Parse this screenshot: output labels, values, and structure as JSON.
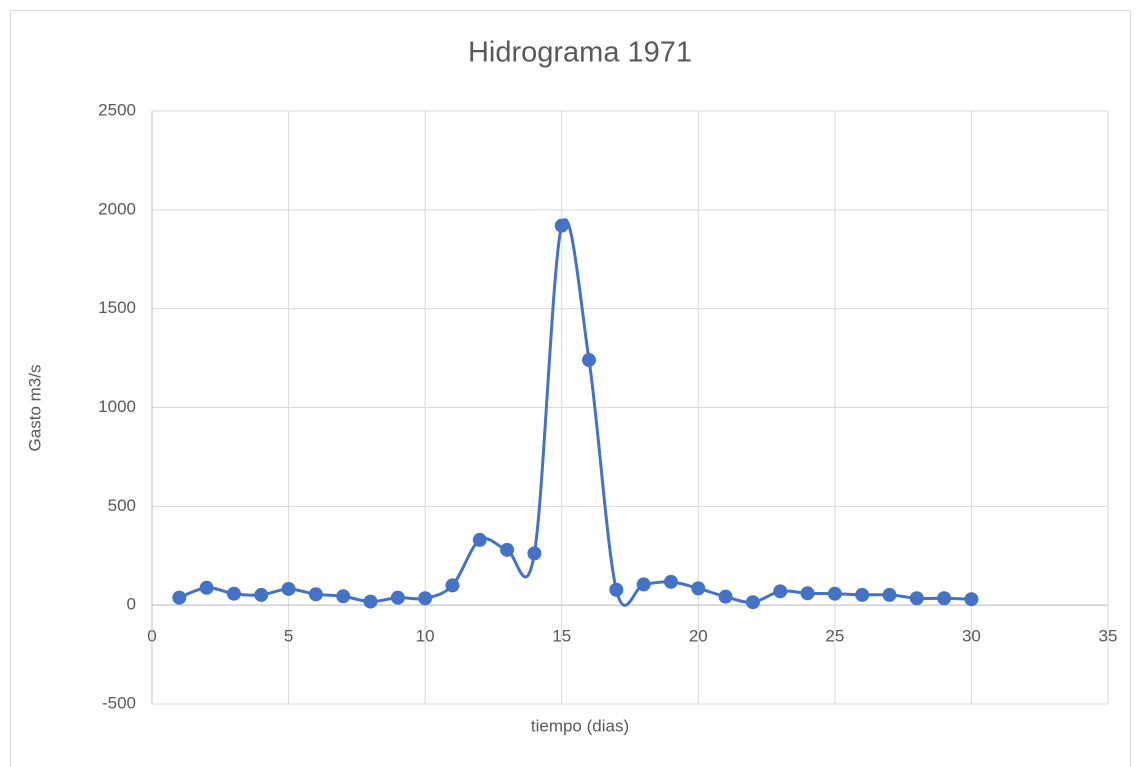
{
  "chart_data": {
    "type": "scatter",
    "title": "Hidrograma 1971",
    "x_label": "tiempo (dias)",
    "y_label": "Gasto m3/s",
    "x": [
      1,
      2,
      3,
      4,
      5,
      6,
      7,
      8,
      9,
      10,
      11,
      12,
      13,
      14,
      15,
      16,
      17,
      18,
      19,
      20,
      21,
      22,
      23,
      24,
      25,
      26,
      27,
      28,
      29,
      30
    ],
    "values": [
      38,
      88,
      58,
      52,
      82,
      55,
      45,
      18,
      38,
      35,
      100,
      330,
      280,
      262,
      1920,
      1240,
      78,
      105,
      118,
      85,
      43,
      15,
      70,
      60,
      58,
      52,
      52,
      35,
      35,
      30
    ],
    "color": "#4472c4",
    "smooth": true,
    "xlim": [
      0,
      35
    ],
    "xticks": [
      0,
      5,
      10,
      15,
      20,
      25,
      30,
      35
    ],
    "ylim": [
      -500,
      2500
    ],
    "yticks": [
      -500,
      0,
      500,
      1000,
      1500,
      2000,
      2500
    ],
    "grid": true
  }
}
